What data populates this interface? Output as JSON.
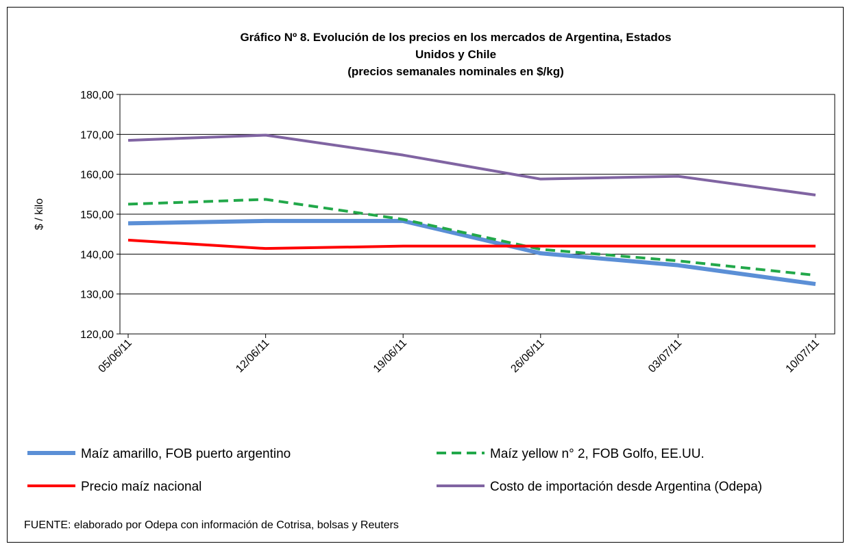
{
  "chart_data": {
    "type": "line",
    "title": [
      "Gráfico Nº 8. Evolución de los precios en los mercados de Argentina, Estados",
      "Unidos y  Chile",
      "(precios semanales nominales en $/kg)"
    ],
    "y_label": "$ / kilo",
    "categories": [
      "05/06/11",
      "12/06/11",
      "19/06/11",
      "26/06/11",
      "03/07/11",
      "10/07/11"
    ],
    "series": [
      {
        "name": "Maíz amarillo, FOB puerto argentino",
        "color": "#5b8fd6",
        "dash": false,
        "values": [
          147.7,
          148.3,
          148.3,
          140.2,
          137.2,
          132.5
        ]
      },
      {
        "name": "Maíz yellow n° 2, FOB Golfo, EE.UU.",
        "color": "#22a84a",
        "dash": true,
        "values": [
          152.5,
          153.7,
          148.7,
          141.2,
          138.3,
          134.7
        ]
      },
      {
        "name": "Precio maíz nacional",
        "color": "#ff0000",
        "dash": false,
        "values": [
          143.5,
          141.4,
          142.0,
          142.0,
          142.0,
          142.0
        ]
      },
      {
        "name": "Costo de importación desde Argentina (Odepa)",
        "color": "#8064a2",
        "dash": false,
        "values": [
          168.5,
          169.8,
          164.8,
          158.8,
          159.5,
          154.8
        ]
      }
    ],
    "ylim": [
      120,
      180
    ],
    "yticks": [
      {
        "value": 120,
        "label": "120,00"
      },
      {
        "value": 130,
        "label": "130,00"
      },
      {
        "value": 140,
        "label": "140,00"
      },
      {
        "value": 150,
        "label": "150,00"
      },
      {
        "value": 160,
        "label": "160,00"
      },
      {
        "value": 170,
        "label": "170,00"
      },
      {
        "value": 180,
        "label": "180,00"
      }
    ],
    "grid": true,
    "source": "FUENTE: elaborado por Odepa con información de Cotrisa, bolsas y Reuters"
  }
}
